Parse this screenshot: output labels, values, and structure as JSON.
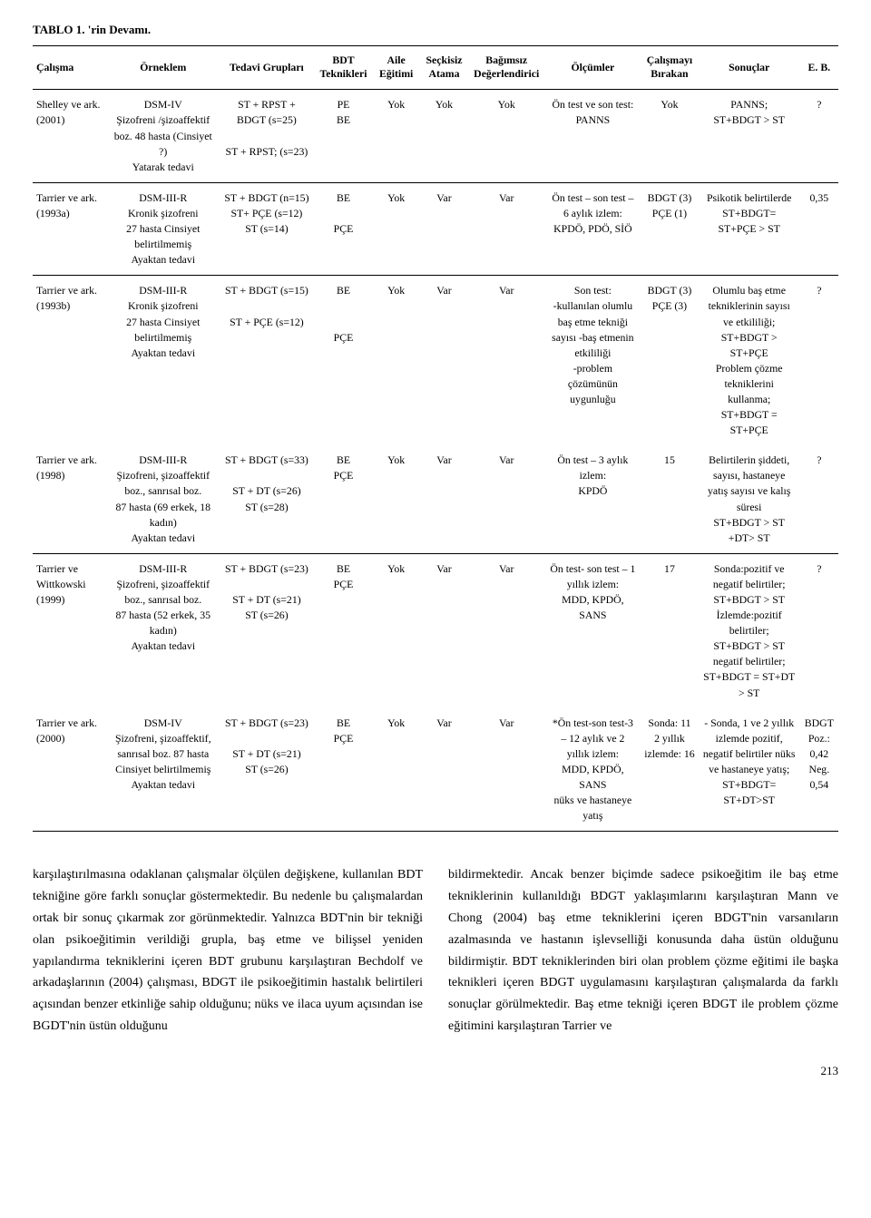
{
  "table": {
    "title": "TABLO 1. 'rin Devamı.",
    "headers": [
      "Çalışma",
      "Örneklem",
      "Tedavi Grupları",
      "BDT Teknikleri",
      "Aile Eğitimi",
      "Seçkisiz Atama",
      "Bağımsız Değerlendirici",
      "Ölçümler",
      "Çalışmayı Bırakan",
      "Sonuçlar",
      "E. B."
    ],
    "rows": [
      {
        "sep": false,
        "cells": [
          "Shelley ve ark. (2001)",
          "DSM-IV\nŞizofreni /şizoaffektif boz. 48 hasta (Cinsiyet ?)\nYatarak tedavi",
          "ST + RPST + BDGT (s=25)\n\nST + RPST; (s=23)",
          "PE\nBE",
          "Yok",
          "Yok",
          "Yok",
          "Ön test ve son test:\nPANNS",
          "Yok",
          "PANNS;\nST+BDGT > ST",
          "?"
        ]
      },
      {
        "sep": true,
        "cells": [
          "Tarrier ve ark. (1993a)",
          "DSM-III-R\nKronik şizofreni\n27 hasta Cinsiyet belirtilmemiş\nAyaktan tedavi",
          "ST + BDGT (n=15)\nST+ PÇE (s=12)\nST (s=14)",
          "BE\n\nPÇE",
          "Yok",
          "Var",
          "Var",
          "Ön test – son test – 6 aylık izlem:\nKPDÖ, PDÖ, SİÖ",
          "BDGT (3)\nPÇE (1)",
          "Psikotik belirtilerde\nST+BDGT= ST+PÇE > ST",
          "0,35"
        ]
      },
      {
        "sep": true,
        "cells": [
          "Tarrier ve ark. (1993b)",
          "DSM-III-R\nKronik şizofreni\n27 hasta Cinsiyet belirtilmemiş\nAyaktan tedavi",
          "ST + BDGT (s=15)\n\nST + PÇE (s=12)",
          "BE\n\n\nPÇE",
          "Yok",
          "Var",
          "Var",
          "Son test:\n-kullanılan olumlu baş etme tekniği sayısı -baş etmenin etkililiği\n-problem çözümünün uygunluğu",
          "BDGT (3)\nPÇE (3)",
          "Olumlu baş etme tekniklerinin sayısı ve etkililiği;\nST+BDGT > ST+PÇE\nProblem çözme tekniklerini kullanma;\nST+BDGT = ST+PÇE",
          "?"
        ]
      },
      {
        "sep": false,
        "cells": [
          "Tarrier ve ark. (1998)",
          "DSM-III-R\nŞizofreni, şizoaffektif boz., sanrısal boz.\n87 hasta (69 erkek, 18 kadın)\nAyaktan tedavi",
          "ST + BDGT (s=33)\n\nST + DT (s=26)\nST (s=28)",
          "BE\nPÇE",
          "Yok",
          "Var",
          "Var",
          "Ön test – 3 aylık izlem:\nKPDÖ",
          "15",
          "Belirtilerin şiddeti, sayısı, hastaneye yatış sayısı ve kalış süresi\nST+BDGT > ST +DT> ST",
          "?"
        ]
      },
      {
        "sep": true,
        "cells": [
          "Tarrier ve Wittkowski (1999)",
          "DSM-III-R\nŞizofreni, şizoaffektif boz., sanrısal boz.\n87 hasta (52 erkek, 35 kadın)\nAyaktan tedavi",
          "ST + BDGT (s=23)\n\nST + DT (s=21)\nST (s=26)",
          "BE\nPÇE",
          "Yok",
          "Var",
          "Var",
          "Ön test- son test – 1 yıllık izlem:\nMDD, KPDÖ, SANS",
          "17",
          "Sonda:pozitif ve negatif belirtiler; ST+BDGT > ST\nİzlemde:pozitif belirtiler;\nST+BDGT > ST negatif belirtiler; ST+BDGT = ST+DT > ST",
          "?"
        ]
      },
      {
        "sep": false,
        "last": true,
        "cells": [
          "Tarrier ve ark. (2000)",
          "DSM-IV\nŞizofreni, şizoaffektif, sanrısal boz. 87 hasta Cinsiyet belirtilmemiş\nAyaktan tedavi",
          "ST + BDGT (s=23)\n\nST + DT (s=21)\nST (s=26)",
          "BE\nPÇE",
          "Yok",
          "Var",
          "Var",
          "*Ön test-son test-3 – 12 aylık ve 2 yıllık izlem:\nMDD, KPDÖ, SANS\nnüks ve hastaneye yatış",
          "Sonda: 11\n2 yıllık izlemde: 16",
          "- Sonda, 1 ve 2 yıllık izlemde pozitif, negatif belirtiler nüks ve hastaneye yatış;\nST+BDGT= ST+DT>ST",
          "BDGT Poz.: 0,42 Neg. 0,54"
        ]
      }
    ]
  },
  "body": {
    "left": "karşılaştırılmasına odaklanan çalışmalar ölçülen değişkene, kullanılan BDT tekniğine göre farklı sonuçlar göstermektedir. Bu nedenle bu çalışmalardan ortak bir sonuç çıkarmak zor görünmektedir. Yalnızca BDT'nin bir tekniği olan psikoeğitimin verildiği grupla, baş etme ve bilişsel yeniden yapılandırma tekniklerini içeren BDT grubunu karşılaştıran Bechdolf ve arkadaşlarının (2004) çalışması, BDGT ile psikoeğitimin hastalık belirtileri açısından benzer etkinliğe sahip olduğunu; nüks ve ilaca uyum açısından ise BGDT'nin üstün olduğunu",
    "right": "bildirmektedir. Ancak benzer biçimde sadece psikoeğitim ile baş etme tekniklerinin kullanıldığı BDGT yaklaşımlarını karşılaştıran Mann ve Chong (2004) baş etme tekniklerini içeren BDGT'nin varsanıların azalmasında ve hastanın işlevselliği konusunda daha üstün olduğunu bildirmiştir. BDT tekniklerinden biri olan problem çözme eğitimi ile başka teknikleri içeren BDGT uygulamasını karşılaştıran çalışmalarda da farklı sonuçlar görülmektedir. Baş etme tekniği içeren BDGT ile problem çözme eğitimini karşılaştıran Tarrier ve"
  },
  "pageNumber": "213"
}
